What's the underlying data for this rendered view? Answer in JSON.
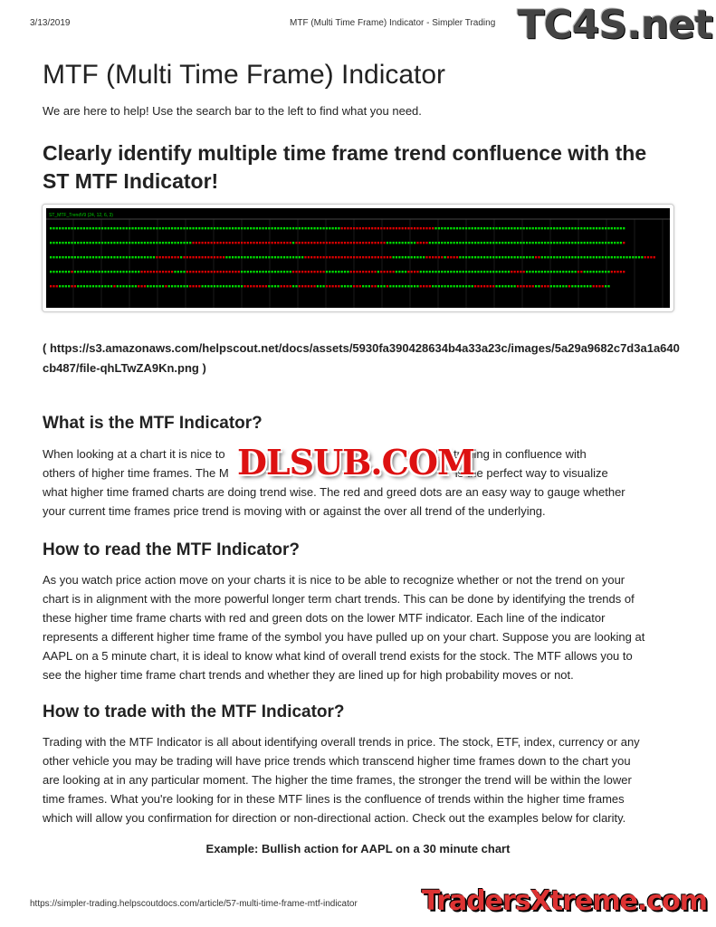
{
  "print_header": {
    "date": "3/13/2019",
    "title": "MTF (Multi Time Frame) Indicator - Simpler Trading"
  },
  "watermarks": {
    "top": "TC4S.net",
    "middle": "DLSUB.COM",
    "bottom": "TradersXtreme.com"
  },
  "page_title": "MTF (Multi Time Frame) Indicator",
  "intro": "We are here to help! Use the search bar to the left to find what you need.",
  "headline": "Clearly identify multiple time frame trend confluence with the ST MTF Indicator!",
  "indicator_image": {
    "label": "ST_MTF_TrendV9 (24, 12, 6, 3)",
    "colors": {
      "background": "#000000",
      "up": "#00e000",
      "down": "#e00000"
    },
    "rows": [
      [
        [
          "G",
          96
        ],
        [
          "R",
          31
        ],
        [
          "G",
          63
        ]
      ],
      [
        [
          "G",
          47
        ],
        [
          "R",
          33
        ],
        [
          "G",
          1
        ],
        [
          "R",
          30
        ],
        [
          "G",
          10
        ],
        [
          "R",
          4
        ],
        [
          "G",
          64
        ],
        [
          "R",
          1
        ]
      ],
      [
        [
          "G",
          35
        ],
        [
          "R",
          8
        ],
        [
          "G",
          1
        ],
        [
          "R",
          14
        ],
        [
          "G",
          26
        ],
        [
          "R",
          29
        ],
        [
          "G",
          11
        ],
        [
          "R",
          6
        ],
        [
          "G",
          1
        ],
        [
          "R",
          4
        ],
        [
          "G",
          25
        ],
        [
          "R",
          2
        ],
        [
          "G",
          34
        ],
        [
          "R",
          4
        ]
      ],
      [
        [
          "G",
          7
        ],
        [
          "R",
          1
        ],
        [
          "G",
          22
        ],
        [
          "R",
          11
        ],
        [
          "G",
          4
        ],
        [
          "R",
          18
        ],
        [
          "G",
          17
        ],
        [
          "R",
          11
        ],
        [
          "G",
          8
        ],
        [
          "R",
          9
        ],
        [
          "G",
          1
        ],
        [
          "R",
          5
        ],
        [
          "G",
          4
        ],
        [
          "R",
          4
        ],
        [
          "G",
          30
        ],
        [
          "R",
          5
        ],
        [
          "G",
          17
        ],
        [
          "R",
          2
        ],
        [
          "G",
          9
        ],
        [
          "R",
          5
        ]
      ],
      [
        [
          "R",
          3
        ],
        [
          "G",
          4
        ],
        [
          "R",
          2
        ],
        [
          "G",
          12
        ],
        [
          "R",
          1
        ],
        [
          "G",
          7
        ],
        [
          "R",
          3
        ],
        [
          "G",
          6
        ],
        [
          "R",
          1
        ],
        [
          "G",
          7
        ],
        [
          "R",
          4
        ],
        [
          "G",
          14
        ],
        [
          "R",
          8
        ],
        [
          "G",
          4
        ],
        [
          "R",
          4
        ],
        [
          "G",
          2
        ],
        [
          "R",
          6
        ],
        [
          "G",
          3
        ],
        [
          "R",
          5
        ],
        [
          "G",
          4
        ],
        [
          "R",
          3
        ],
        [
          "G",
          3
        ],
        [
          "R",
          2
        ],
        [
          "G",
          3
        ],
        [
          "R",
          1
        ],
        [
          "G",
          10
        ],
        [
          "R",
          4
        ],
        [
          "G",
          14
        ],
        [
          "R",
          7
        ],
        [
          "G",
          7
        ],
        [
          "R",
          6
        ],
        [
          "G",
          2
        ],
        [
          "R",
          3
        ],
        [
          "G",
          6
        ],
        [
          "R",
          1
        ],
        [
          "G",
          7
        ],
        [
          "R",
          4
        ],
        [
          "G",
          2
        ]
      ]
    ]
  },
  "image_url": "( https://s3.amazonaws.com/helpscout.net/docs/assets/5930fa390428634b4a33a23c/images/5a29a9682c7d3a1a640cb487/file-qhLTwZA9Kn.png )",
  "sections": [
    {
      "heading": "What is the MTF Indicator?",
      "lines": [
        [
          "When looking at a chart it is nice to",
          "at is trading in confluence with"
        ],
        [
          "others of higher time frames. The M",
          "is the perfect way to visualize"
        ],
        [
          "what higher time framed charts are doing trend wise. The red and greed dots are an easy way to gauge whether"
        ],
        [
          "your current time frames price trend is moving with or against the over all trend of the underlying."
        ]
      ]
    },
    {
      "heading": "How to read the MTF Indicator?",
      "lines": [
        "As you watch price action move on your charts it is nice to be able to recognize whether or not the trend on your",
        "chart is in alignment with the more powerful longer term chart trends. This can be done by identifying the trends of",
        "these higher time frame charts with red and green dots on the lower MTF indicator. Each line of the indicator",
        "represents a different higher time frame of the symbol you have pulled up on your chart. Suppose you are looking at",
        "AAPL on a 5 minute chart, it is ideal to know what kind of overall trend exists for the stock. The MTF allows you to",
        "see the higher time frame chart trends and whether they are lined up for high probability moves or not."
      ]
    },
    {
      "heading": "How to trade with the MTF Indicator?",
      "lines": [
        "Trading with the MTF Indicator is all about identifying overall trends in price. The stock, ETF, index, currency or any",
        "other vehicle you may be trading will have price trends which transcend higher time frames down to the chart you",
        "are looking at in any particular moment. The higher the time frames, the stronger the trend will be within the lower",
        "time frames. What you're looking for in these MTF lines is the confluence of trends within the higher time frames",
        "which will allow you confirmation for direction or non-directional action. Check out the examples below for clarity."
      ]
    }
  ],
  "example_caption": "Example: Bullish action for AAPL on a 30 minute chart",
  "print_footer": {
    "url": "https://simpler-trading.helpscoutdocs.com/article/57-multi-time-frame-mtf-indicator"
  }
}
